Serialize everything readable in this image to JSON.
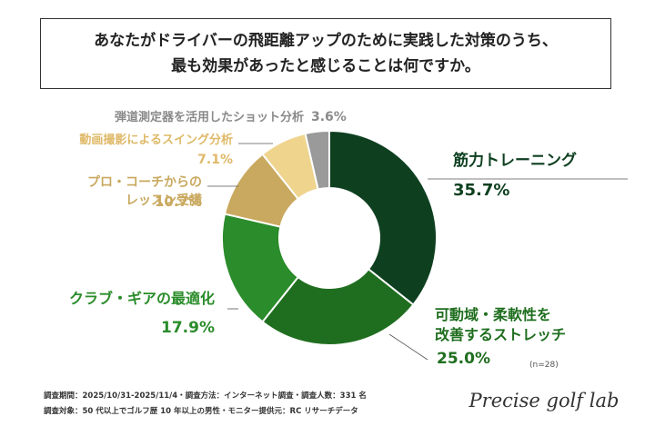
{
  "chart_data": {
    "type": "donut",
    "title": "あなたがドライバーの飛距離アップのために実践した対策のうち、\n最も効果があったと感じることは何ですか。",
    "categories": [
      "筋力トレーニング",
      "可動域・柔軟性を\n改善するストレッチ",
      "クラブ・ギアの最適化",
      "プロ・コーチからの\nレッスン受講",
      "動画撮影によるスイング分析",
      "弾道測定器を活用したショット分析"
    ],
    "values": [
      35.7,
      25.0,
      17.9,
      10.7,
      7.1,
      3.6
    ],
    "value_labels": [
      "35.7%",
      "25.0%",
      "17.9%",
      "10.7%",
      "7.1%",
      "3.6%"
    ],
    "colors": [
      "#0e4020",
      "#1f6e1f",
      "#2a8c2a",
      "#c9a95f",
      "#efd48e",
      "#9a9a9a"
    ],
    "sample_note": "(n=28)",
    "footnotes": [
      "調査期間：2025/10/31-2025/11/4・調査方法：インターネット調査・調査人数：331 名",
      "調査対象：50 代以上でゴルフ歴 10 年以上の男性・モニター提供元：RC リサーチデータ"
    ],
    "brand": "Precise golf lab"
  }
}
